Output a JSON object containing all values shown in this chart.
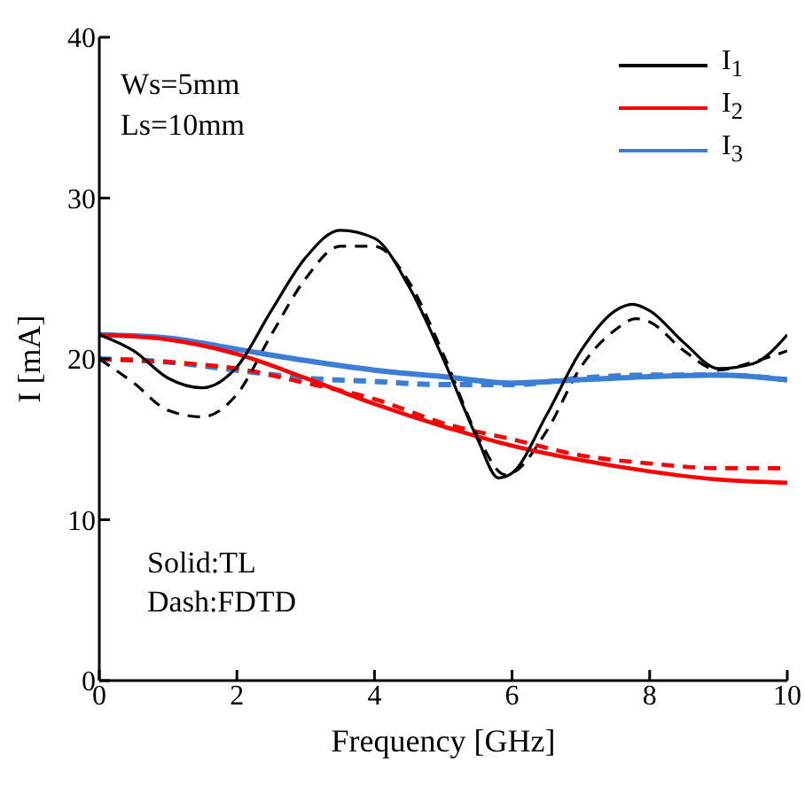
{
  "chart_data": {
    "type": "line",
    "xlabel": "Frequency [GHz]",
    "ylabel": "I [mA]",
    "xlim": [
      0,
      10
    ],
    "xticks": [
      0,
      2,
      4,
      6,
      8,
      10
    ],
    "ylim": [
      0,
      40
    ],
    "yticks": [
      0,
      10,
      20,
      30,
      40
    ],
    "grid": false,
    "legend": "top right",
    "marker": "none",
    "annotations": [
      "Ws=5mm",
      "Ls=10mm",
      "Solid:TL",
      "Dash:FDTD"
    ],
    "series": [
      {
        "name": "I$_{1}$",
        "color": "#000000",
        "line_style": "solid",
        "x": [
          0,
          0.5,
          1,
          1.5,
          2,
          2.5,
          3,
          3.5,
          4,
          4.5,
          5,
          5.5,
          5.8,
          6,
          6.5,
          7,
          7.5,
          7.75,
          8,
          8.5,
          9,
          9.5,
          10
        ],
        "values": [
          21.5,
          20.5,
          18.8,
          18.2,
          19.5,
          23,
          26.3,
          28,
          27.5,
          24.5,
          20,
          15,
          12.6,
          12.9,
          16.5,
          20.5,
          23,
          23.4,
          23,
          21,
          19.4,
          19.7,
          21.5
        ]
      },
      {
        "name": "I$_{2}$",
        "color": "#ff0000",
        "line_style": "solid",
        "x": [
          0,
          1,
          2,
          3,
          4,
          5,
          6,
          7,
          8,
          9,
          10
        ],
        "values": [
          21.5,
          21.2,
          20.3,
          18.8,
          17.2,
          15.8,
          14.6,
          13.7,
          13,
          12.5,
          12.3
        ]
      },
      {
        "name": "I$_{3}$",
        "color": "#3a7fd5",
        "line_style": "solid",
        "x": [
          0,
          1,
          2,
          3,
          4,
          5,
          6,
          7,
          8,
          9,
          10
        ],
        "values": [
          21.5,
          21.3,
          20.6,
          19.9,
          19.3,
          18.9,
          18.5,
          18.7,
          18.9,
          19,
          18.7
        ]
      },
      {
        "color": "#000000",
        "line_style": "dashed",
        "x": [
          0,
          0.5,
          1,
          1.5,
          2,
          2.5,
          3,
          3.5,
          4,
          4.5,
          5,
          5.5,
          5.9,
          6,
          6.5,
          7,
          7.5,
          7.8,
          8,
          8.5,
          9,
          9.5,
          10
        ],
        "values": [
          20,
          18.5,
          16.8,
          16.4,
          17.8,
          21.5,
          25,
          27,
          27,
          24.8,
          20.3,
          15.2,
          12.8,
          12.9,
          15.5,
          19.5,
          21.8,
          22.5,
          22.3,
          20.5,
          19.3,
          19.8,
          20.5
        ]
      },
      {
        "color": "#ff0000",
        "line_style": "dashed",
        "x": [
          0,
          1,
          2,
          3,
          4,
          5,
          6,
          7,
          8,
          9,
          10
        ],
        "values": [
          20,
          19.8,
          19.4,
          18.5,
          17.5,
          16,
          15,
          14,
          13.5,
          13.2,
          13.2
        ]
      },
      {
        "color": "#3a7fd5",
        "line_style": "dashed",
        "x": [
          0,
          1,
          2,
          3,
          4,
          5,
          6,
          7,
          8,
          9,
          10
        ],
        "values": [
          20,
          19.8,
          19.3,
          18.8,
          18.6,
          18.4,
          18.4,
          18.8,
          19,
          19,
          18.7
        ]
      }
    ]
  }
}
